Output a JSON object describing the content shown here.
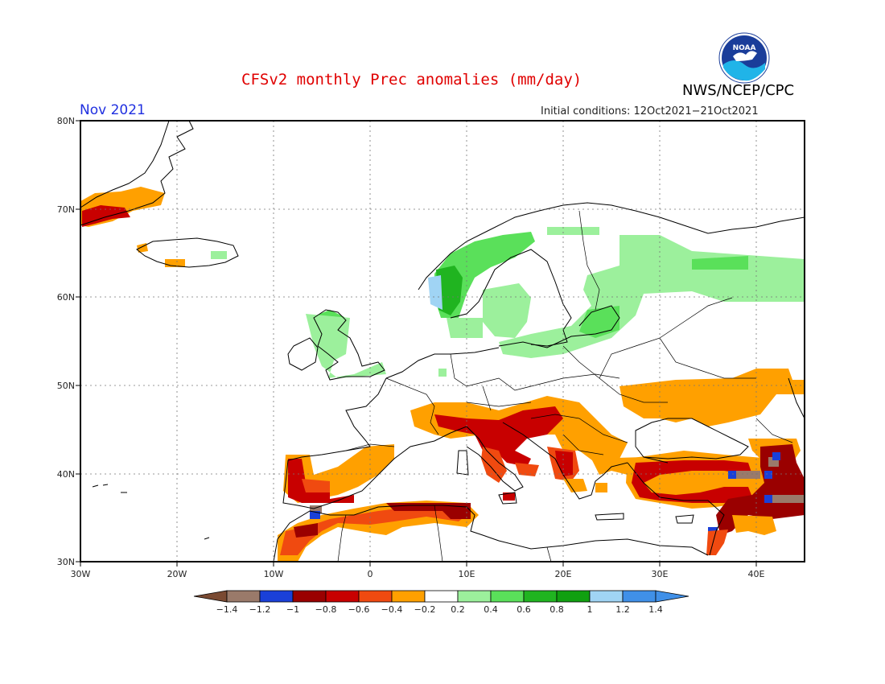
{
  "title": "CFSv2 monthly Prec anomalies (mm/day)",
  "valid_month": "Nov 2021",
  "initial_conditions": "Initial conditions: 12Oct2021−21Oct2021",
  "agency": "NWS/NCEP/CPC",
  "logo_text": "NOAA",
  "map": {
    "lon_range": [
      -30,
      45
    ],
    "lat_range": [
      30,
      80
    ],
    "lon_ticks": [
      "30W",
      "20W",
      "10W",
      "0",
      "10E",
      "20E",
      "30E",
      "40E"
    ],
    "lat_ticks": [
      "30N",
      "40N",
      "50N",
      "60N",
      "70N",
      "80N"
    ],
    "gridlines": "dotted"
  },
  "colorbar": {
    "labels": [
      "−1.4",
      "−1.2",
      "−1",
      "−0.8",
      "−0.6",
      "−0.4",
      "−0.2",
      "0.2",
      "0.4",
      "0.6",
      "0.8",
      "1",
      "1.2",
      "1.4"
    ],
    "colors": [
      "#7a4a32",
      "#9a7a6a",
      "#1a40d8",
      "#9a0000",
      "#c80000",
      "#f04a10",
      "#ffa000",
      "#ffffff",
      "#9cf09c",
      "#5ae05a",
      "#20b420",
      "#10a010",
      "#a0d4f4",
      "#4090e8",
      "#4090e8"
    ]
  },
  "colors": {
    "dry_strong": "#c80000",
    "dry_mid": "#f04a10",
    "dry_weak": "#ffa000",
    "wet_weak": "#9cf09c",
    "wet_mid": "#5ae05a",
    "wet_strong": "#20b420",
    "wet_extreme": "#a0d4f4",
    "title_red": "#e00000",
    "month_blue": "#2030e0"
  }
}
